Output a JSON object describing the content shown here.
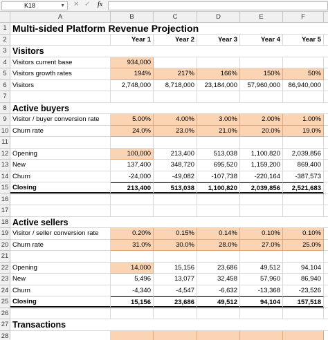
{
  "formula_bar": {
    "name_box": "K18",
    "fx": "fx"
  },
  "columns": [
    "A",
    "B",
    "C",
    "D",
    "E",
    "F"
  ],
  "rows": [
    {
      "number": 1,
      "style": "title",
      "cells": [
        "Multi-sided Platform Revenue Projection",
        null,
        null,
        null,
        null,
        null
      ]
    },
    {
      "number": 2,
      "style": "header",
      "cells": [
        null,
        "Year 1",
        "Year 2",
        "Year 3",
        "Year 4",
        "Year 5"
      ]
    },
    {
      "number": 3,
      "style": "section",
      "cells": [
        "Visitors",
        null,
        null,
        null,
        null,
        null
      ]
    },
    {
      "number": 4,
      "highlight": [
        1
      ],
      "cells": [
        "Visitors current base",
        "934,000",
        null,
        null,
        null,
        null
      ]
    },
    {
      "number": 5,
      "highlight": [
        1,
        2,
        3,
        4,
        5
      ],
      "cells": [
        "Visitors growth rates",
        "194%",
        "217%",
        "166%",
        "150%",
        "50%"
      ]
    },
    {
      "number": 6,
      "cells": [
        "Visitors",
        "2,748,000",
        "8,718,000",
        "23,184,000",
        "57,960,000",
        "86,940,000"
      ]
    },
    {
      "number": 7
    },
    {
      "number": 8,
      "style": "section",
      "cells": [
        "Active buyers",
        null,
        null,
        null,
        null,
        null
      ]
    },
    {
      "number": 9,
      "highlight": [
        1,
        2,
        3,
        4,
        5
      ],
      "cells": [
        "Visitor / buyer conversion rate",
        "5.00%",
        "4.00%",
        "3.00%",
        "2.00%",
        "1.00%"
      ]
    },
    {
      "number": 10,
      "highlight": [
        1,
        2,
        3,
        4,
        5
      ],
      "cells": [
        "Churn rate",
        "24.0%",
        "23.0%",
        "21.0%",
        "20.0%",
        "19.0%"
      ]
    },
    {
      "number": 11
    },
    {
      "number": 12,
      "highlight": [
        1
      ],
      "cells": [
        "Opening",
        "100,000",
        "213,400",
        "513,038",
        "1,100,820",
        "2,039,856"
      ]
    },
    {
      "number": 13,
      "cells": [
        "New",
        "137,400",
        "348,720",
        "695,520",
        "1,159,200",
        "869,400"
      ]
    },
    {
      "number": 14,
      "cells": [
        "Churn",
        "-24,000",
        "-49,082",
        "-107,738",
        "-220,164",
        "-387,573"
      ]
    },
    {
      "number": 15,
      "style": "total",
      "cells": [
        "Closing",
        "213,400",
        "513,038",
        "1,100,820",
        "2,039,856",
        "2,521,683"
      ]
    },
    {
      "number": 16
    },
    {
      "number": 17
    },
    {
      "number": 18,
      "style": "section",
      "cells": [
        "Active sellers",
        null,
        null,
        null,
        null,
        null
      ]
    },
    {
      "number": 19,
      "highlight": [
        1,
        2,
        3,
        4,
        5
      ],
      "cells": [
        "Visitor / seller conversion rate",
        "0.20%",
        "0.15%",
        "0.14%",
        "0.10%",
        "0.10%"
      ]
    },
    {
      "number": 20,
      "highlight": [
        1,
        2,
        3,
        4,
        5
      ],
      "cells": [
        "Churn rate",
        "31.0%",
        "30.0%",
        "28.0%",
        "27.0%",
        "25.0%"
      ]
    },
    {
      "number": 21
    },
    {
      "number": 22,
      "highlight": [
        1
      ],
      "cells": [
        "Opening",
        "14,000",
        "15,156",
        "23,686",
        "49,512",
        "94,104"
      ]
    },
    {
      "number": 23,
      "cells": [
        "New",
        "5,496",
        "13,077",
        "32,458",
        "57,960",
        "86,940"
      ]
    },
    {
      "number": 24,
      "cells": [
        "Churn",
        "-4,340",
        "-4,547",
        "-6,632",
        "-13,368",
        "-23,526"
      ]
    },
    {
      "number": 25,
      "style": "total",
      "cells": [
        "Closing",
        "15,156",
        "23,686",
        "49,512",
        "94,104",
        "157,518"
      ]
    },
    {
      "number": 26
    },
    {
      "number": 27,
      "style": "section",
      "cells": [
        "Transactions",
        null,
        null,
        null,
        null,
        null
      ]
    },
    {
      "number": 28,
      "highlight": [
        1,
        2,
        3,
        4,
        5
      ]
    }
  ]
}
